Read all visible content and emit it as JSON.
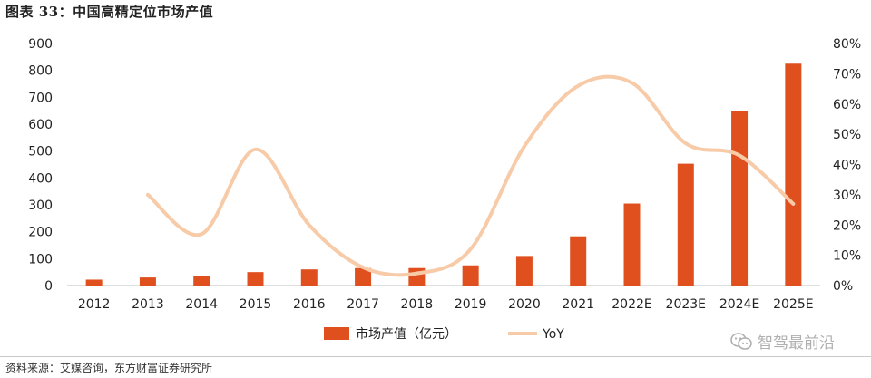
{
  "header": {
    "title": "图表 33：中国高精定位市场产值"
  },
  "footer": {
    "source": "资料来源：艾媒咨询，东方财富证券研究所"
  },
  "watermark": {
    "text": "智驾最前沿",
    "icon": "wechat-icon"
  },
  "colors": {
    "bar": "#e0501f",
    "line": "#f8cba8",
    "axis": "#bfbfbf",
    "text": "#222222"
  },
  "chart_data": {
    "type": "bar",
    "categories": [
      "2012",
      "2013",
      "2014",
      "2015",
      "2016",
      "2017",
      "2018",
      "2019",
      "2020",
      "2021",
      "2022E",
      "2023E",
      "2024E",
      "2025E"
    ],
    "series": [
      {
        "name": "市场产值（亿元）",
        "type": "bar",
        "axis": "left",
        "values": [
          22,
          30,
          35,
          50,
          60,
          65,
          65,
          75,
          110,
          183,
          305,
          453,
          648,
          825
        ]
      },
      {
        "name": "YoY",
        "type": "line",
        "axis": "right",
        "values": [
          null,
          0.3,
          0.17,
          0.45,
          0.2,
          0.06,
          0.04,
          0.12,
          0.46,
          0.66,
          0.67,
          0.47,
          0.43,
          0.27
        ]
      }
    ],
    "yleft": {
      "min": 0,
      "max": 900,
      "ticks": [
        0,
        100,
        200,
        300,
        400,
        500,
        600,
        700,
        800,
        900
      ]
    },
    "yright": {
      "min": 0,
      "max": 0.8,
      "ticks": [
        "0%",
        "10%",
        "20%",
        "30%",
        "40%",
        "50%",
        "60%",
        "70%",
        "80%"
      ]
    },
    "legend": "bottom-center",
    "grid": false
  }
}
